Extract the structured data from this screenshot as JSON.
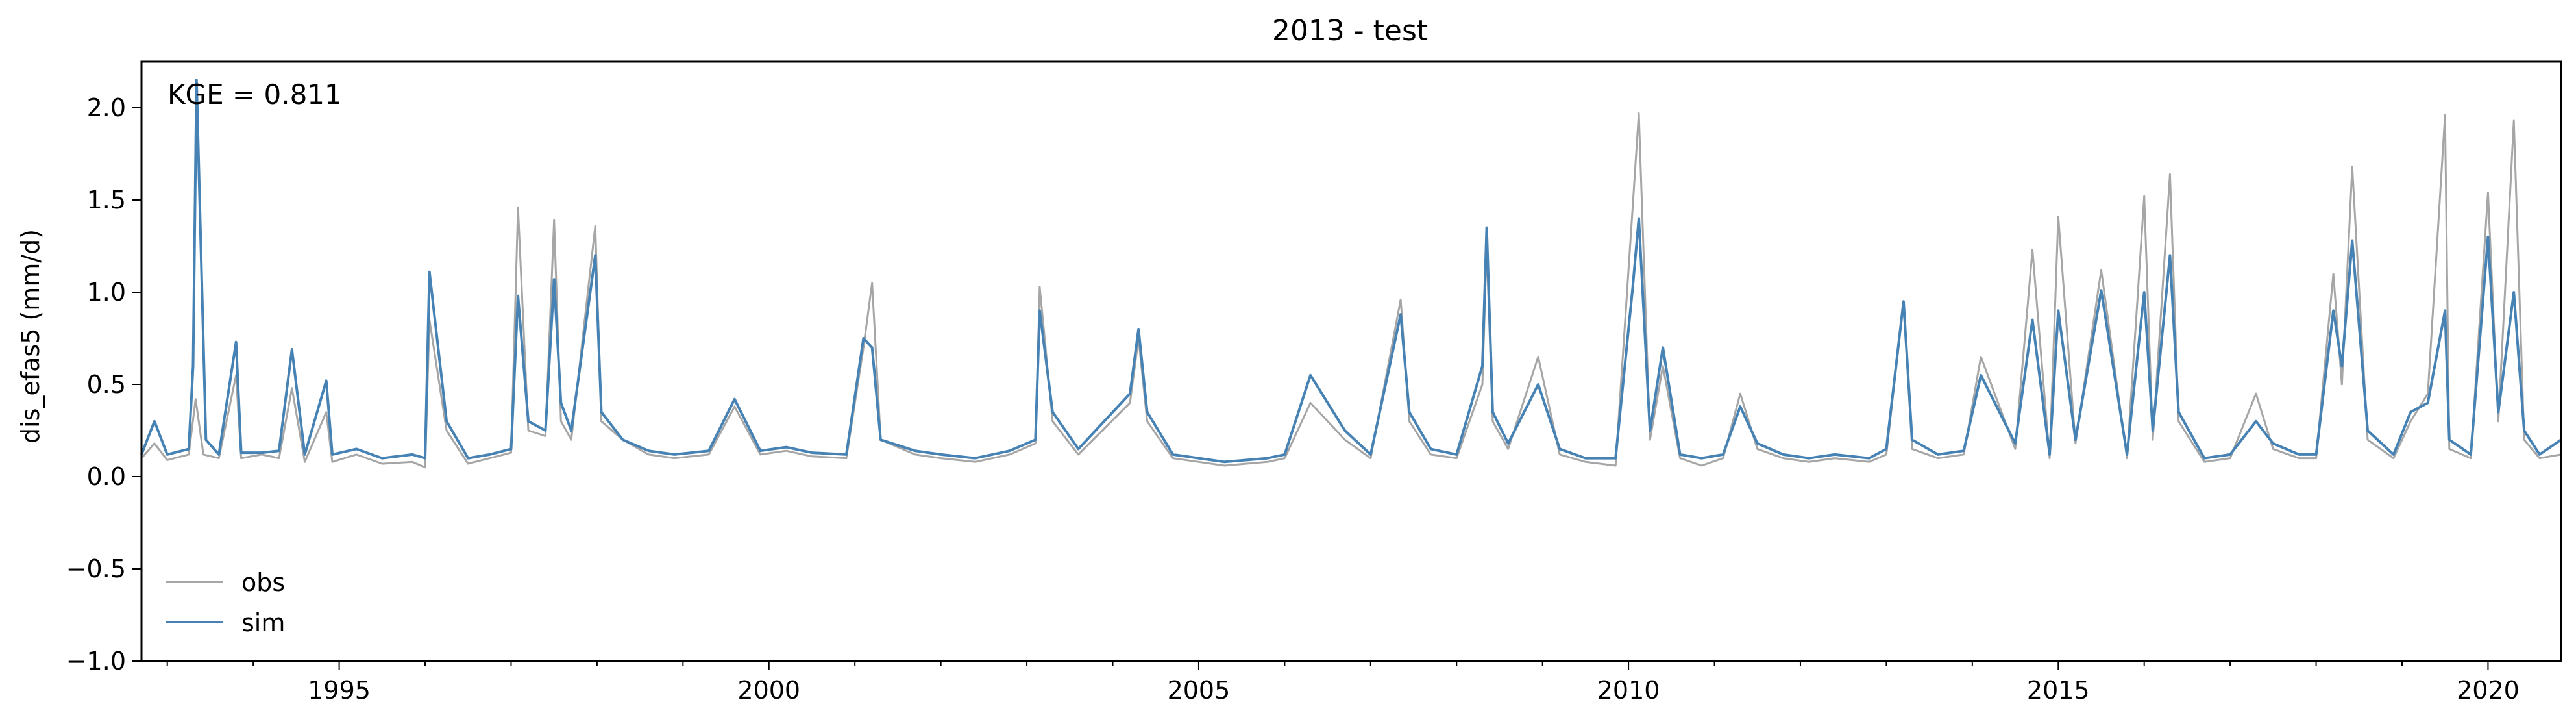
{
  "chart_data": {
    "type": "line",
    "title": "2013 - test",
    "xlabel": "",
    "ylabel": "dis_efas5 (mm/d)",
    "annotation": "KGE = 0.811",
    "xlim": [
      1992.7,
      2020.85
    ],
    "ylim": [
      -1.0,
      2.25
    ],
    "x_ticks": [
      1995,
      2000,
      2005,
      2010,
      2015,
      2020
    ],
    "x_tick_labels": [
      "1995",
      "2000",
      "2005",
      "2010",
      "2015",
      "2020"
    ],
    "y_ticks": [
      -1.0,
      -0.5,
      0.0,
      0.5,
      1.0,
      1.5,
      2.0
    ],
    "y_tick_labels": [
      "−1.0",
      "−0.5",
      "0.0",
      "0.5",
      "1.0",
      "1.5",
      "2.0"
    ],
    "grid": false,
    "legend_position": "lower-left",
    "series": [
      {
        "name": "obs",
        "color": "#a6a6a6",
        "x": [
          1992.7,
          1992.85,
          1993.0,
          1993.25,
          1993.33,
          1993.42,
          1993.6,
          1993.8,
          1993.86,
          1994.1,
          1994.3,
          1994.45,
          1994.6,
          1994.85,
          1994.92,
          1995.2,
          1995.5,
          1995.85,
          1996.0,
          1996.05,
          1996.25,
          1996.5,
          1996.75,
          1997.0,
          1997.08,
          1997.2,
          1997.4,
          1997.5,
          1997.58,
          1997.7,
          1997.98,
          1998.05,
          1998.3,
          1998.6,
          1998.9,
          1999.3,
          1999.6,
          1999.9,
          2000.2,
          2000.5,
          2000.9,
          2001.1,
          2001.2,
          2001.3,
          2001.7,
          2002.0,
          2002.4,
          2002.8,
          2003.1,
          2003.15,
          2003.3,
          2003.6,
          2003.9,
          2004.2,
          2004.3,
          2004.4,
          2004.7,
          2005.0,
          2005.3,
          2005.8,
          2006.0,
          2006.3,
          2006.7,
          2007.0,
          2007.35,
          2007.45,
          2007.7,
          2008.0,
          2008.3,
          2008.35,
          2008.42,
          2008.6,
          2008.95,
          2009.2,
          2009.5,
          2009.85,
          2010.05,
          2010.12,
          2010.25,
          2010.4,
          2010.6,
          2010.85,
          2011.1,
          2011.3,
          2011.5,
          2011.8,
          2012.1,
          2012.4,
          2012.8,
          2013.0,
          2013.2,
          2013.3,
          2013.6,
          2013.9,
          2014.1,
          2014.5,
          2014.7,
          2014.9,
          2015.0,
          2015.2,
          2015.5,
          2015.8,
          2016.0,
          2016.1,
          2016.3,
          2016.4,
          2016.7,
          2017.0,
          2017.3,
          2017.5,
          2017.8,
          2018.0,
          2018.2,
          2018.3,
          2018.42,
          2018.6,
          2018.9,
          2019.1,
          2019.3,
          2019.5,
          2019.55,
          2019.8,
          2020.0,
          2020.12,
          2020.3,
          2020.42,
          2020.6,
          2020.85
        ],
        "y": [
          0.1,
          0.18,
          0.09,
          0.12,
          0.42,
          0.12,
          0.1,
          0.55,
          0.1,
          0.12,
          0.1,
          0.48,
          0.08,
          0.35,
          0.08,
          0.12,
          0.07,
          0.08,
          0.05,
          0.85,
          0.25,
          0.07,
          0.1,
          0.13,
          1.46,
          0.25,
          0.22,
          1.39,
          0.3,
          0.2,
          1.36,
          0.3,
          0.2,
          0.12,
          0.1,
          0.12,
          0.38,
          0.12,
          0.14,
          0.11,
          0.1,
          0.7,
          1.05,
          0.2,
          0.12,
          0.1,
          0.08,
          0.12,
          0.18,
          1.03,
          0.3,
          0.12,
          0.26,
          0.4,
          0.75,
          0.3,
          0.1,
          0.08,
          0.06,
          0.08,
          0.1,
          0.4,
          0.2,
          0.1,
          0.96,
          0.3,
          0.12,
          0.1,
          0.5,
          1.25,
          0.3,
          0.15,
          0.65,
          0.12,
          0.08,
          0.06,
          1.47,
          1.97,
          0.2,
          0.6,
          0.1,
          0.06,
          0.1,
          0.45,
          0.15,
          0.1,
          0.08,
          0.1,
          0.08,
          0.12,
          0.95,
          0.15,
          0.1,
          0.12,
          0.65,
          0.15,
          1.23,
          0.1,
          1.41,
          0.18,
          1.12,
          0.1,
          1.52,
          0.2,
          1.64,
          0.3,
          0.08,
          0.1,
          0.45,
          0.15,
          0.1,
          0.1,
          1.1,
          0.5,
          1.68,
          0.2,
          0.1,
          0.3,
          0.45,
          1.96,
          0.15,
          0.1,
          1.54,
          0.3,
          1.93,
          0.2,
          0.1,
          0.12
        ]
      },
      {
        "name": "sim",
        "color": "#4682b4",
        "x": [
          1992.7,
          1992.85,
          1993.0,
          1993.25,
          1993.3,
          1993.34,
          1993.45,
          1993.6,
          1993.8,
          1993.86,
          1994.1,
          1994.3,
          1994.45,
          1994.6,
          1994.85,
          1994.92,
          1995.2,
          1995.5,
          1995.85,
          1996.0,
          1996.05,
          1996.25,
          1996.5,
          1996.75,
          1997.0,
          1997.08,
          1997.2,
          1997.4,
          1997.5,
          1997.58,
          1997.7,
          1997.98,
          1998.05,
          1998.3,
          1998.6,
          1998.9,
          1999.3,
          1999.6,
          1999.9,
          2000.2,
          2000.5,
          2000.9,
          2001.1,
          2001.2,
          2001.3,
          2001.7,
          2002.0,
          2002.4,
          2002.8,
          2003.1,
          2003.15,
          2003.3,
          2003.6,
          2003.9,
          2004.2,
          2004.3,
          2004.4,
          2004.7,
          2005.0,
          2005.3,
          2005.8,
          2006.0,
          2006.3,
          2006.7,
          2007.0,
          2007.35,
          2007.45,
          2007.7,
          2008.0,
          2008.3,
          2008.35,
          2008.42,
          2008.6,
          2008.95,
          2009.2,
          2009.5,
          2009.85,
          2010.05,
          2010.12,
          2010.25,
          2010.4,
          2010.6,
          2010.85,
          2011.1,
          2011.3,
          2011.5,
          2011.8,
          2012.1,
          2012.4,
          2012.8,
          2013.0,
          2013.2,
          2013.3,
          2013.6,
          2013.9,
          2014.1,
          2014.5,
          2014.7,
          2014.9,
          2015.0,
          2015.2,
          2015.5,
          2015.8,
          2016.0,
          2016.1,
          2016.3,
          2016.4,
          2016.7,
          2017.0,
          2017.3,
          2017.5,
          2017.8,
          2018.0,
          2018.2,
          2018.3,
          2018.42,
          2018.6,
          2018.9,
          2019.1,
          2019.3,
          2019.5,
          2019.55,
          2019.8,
          2020.0,
          2020.12,
          2020.3,
          2020.42,
          2020.6,
          2020.85
        ],
        "y": [
          0.12,
          0.3,
          0.12,
          0.15,
          0.6,
          2.15,
          0.2,
          0.12,
          0.73,
          0.13,
          0.13,
          0.14,
          0.69,
          0.12,
          0.52,
          0.12,
          0.15,
          0.1,
          0.12,
          0.1,
          1.11,
          0.3,
          0.1,
          0.12,
          0.15,
          0.98,
          0.3,
          0.25,
          1.07,
          0.4,
          0.25,
          1.2,
          0.35,
          0.2,
          0.14,
          0.12,
          0.14,
          0.42,
          0.14,
          0.16,
          0.13,
          0.12,
          0.75,
          0.7,
          0.2,
          0.14,
          0.12,
          0.1,
          0.14,
          0.2,
          0.9,
          0.35,
          0.15,
          0.3,
          0.45,
          0.8,
          0.35,
          0.12,
          0.1,
          0.08,
          0.1,
          0.12,
          0.55,
          0.25,
          0.12,
          0.88,
          0.35,
          0.15,
          0.12,
          0.6,
          1.35,
          0.35,
          0.18,
          0.5,
          0.15,
          0.1,
          0.1,
          1.03,
          1.4,
          0.25,
          0.7,
          0.12,
          0.1,
          0.12,
          0.38,
          0.18,
          0.12,
          0.1,
          0.12,
          0.1,
          0.15,
          0.95,
          0.2,
          0.12,
          0.14,
          0.55,
          0.18,
          0.85,
          0.12,
          0.9,
          0.2,
          1.01,
          0.12,
          1.0,
          0.25,
          1.2,
          0.35,
          0.1,
          0.12,
          0.3,
          0.18,
          0.12,
          0.12,
          0.9,
          0.6,
          1.28,
          0.25,
          0.12,
          0.35,
          0.4,
          0.9,
          0.2,
          0.12,
          1.3,
          0.35,
          1.0,
          0.25,
          0.12,
          0.2
        ]
      }
    ]
  }
}
